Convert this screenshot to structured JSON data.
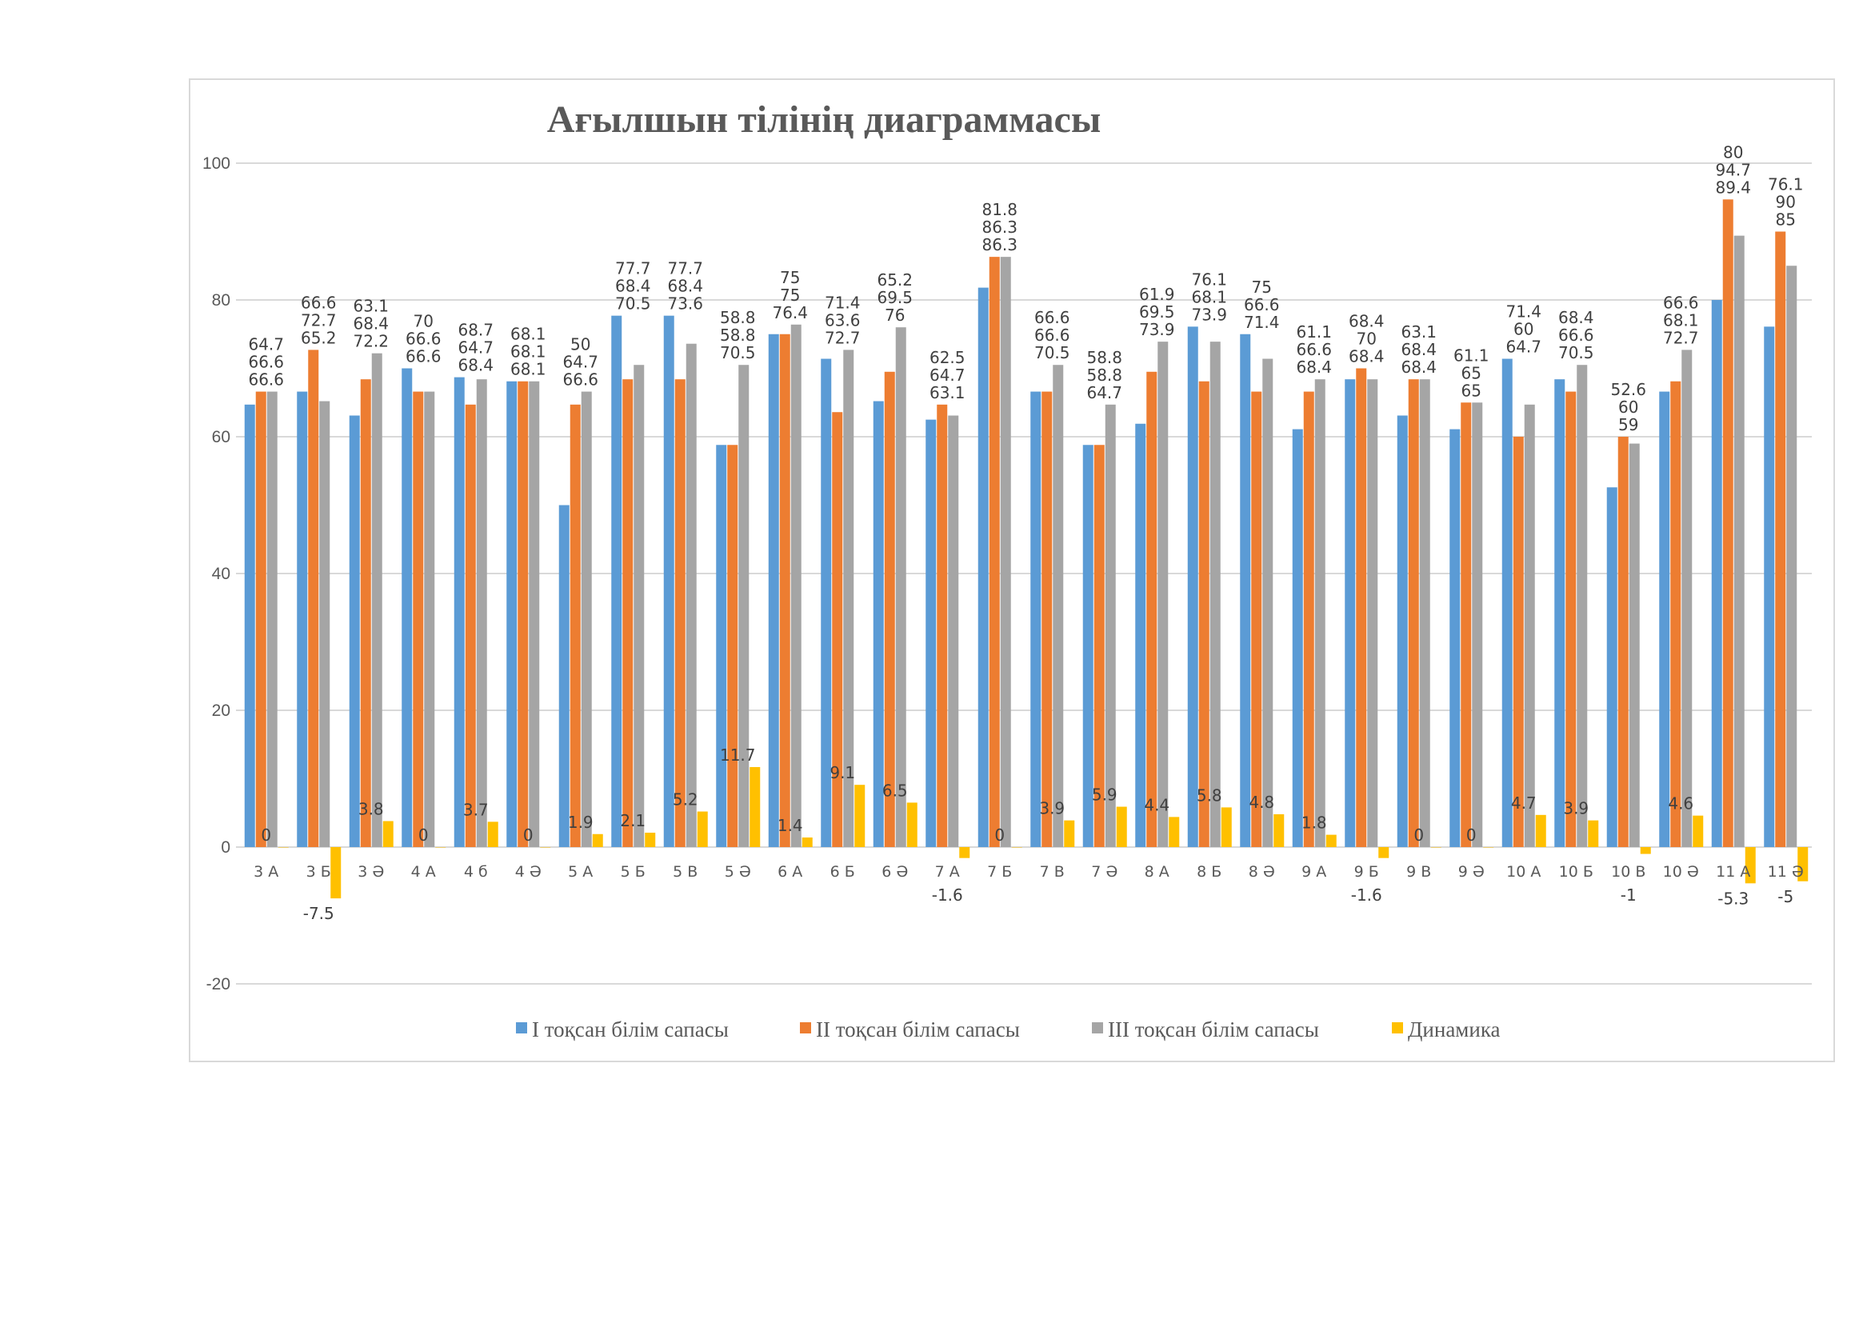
{
  "chart_data": {
    "type": "bar",
    "title": "Ағылшын тілінің диаграммасы",
    "xlabel": "",
    "ylabel": "",
    "ylim": [
      -20,
      100
    ],
    "yticks": [
      -20,
      0,
      20,
      40,
      60,
      80,
      100
    ],
    "grid": true,
    "legend_position": "bottom",
    "data_labels": true,
    "categories": [
      "3 А",
      "3 Б",
      "3 Ә",
      "4 А",
      "4 б",
      "4 Ә",
      "5 А",
      "5 Б",
      "5 В",
      "5 Ә",
      "6 А",
      "6 Б",
      "6 Ә",
      "7 А",
      "7 Б",
      "7 В",
      "7 Ә",
      "8 А",
      "8 Б",
      "8 Ә",
      "9 А",
      "9 Б",
      "9 В",
      "9 Ә",
      "10 А",
      "10 Б",
      "10 В",
      "10 Ә",
      "11 А",
      "11 Ә"
    ],
    "series": [
      {
        "name": "І тоқсан білім сапасы",
        "color": "#5B9BD5",
        "values": [
          64.7,
          66.6,
          63.1,
          70,
          68.7,
          68.1,
          50,
          77.7,
          77.7,
          58.8,
          75,
          71.4,
          65.2,
          62.5,
          81.8,
          66.6,
          58.8,
          61.9,
          76.1,
          75,
          61.1,
          68.4,
          63.1,
          61.1,
          71.4,
          68.4,
          52.6,
          66.6,
          80,
          76.1
        ]
      },
      {
        "name": "ІІ тоқсан білім сапасы",
        "color": "#ED7D31",
        "values": [
          66.6,
          72.7,
          68.4,
          66.6,
          64.7,
          68.1,
          64.7,
          68.4,
          68.4,
          58.8,
          75,
          63.6,
          69.5,
          64.7,
          86.3,
          66.6,
          58.8,
          69.5,
          68.1,
          66.6,
          66.6,
          70,
          68.4,
          65,
          60,
          66.6,
          60,
          68.1,
          94.7,
          90
        ]
      },
      {
        "name": "ІІІ тоқсан білім сапасы",
        "color": "#A5A5A5",
        "values": [
          66.6,
          65.2,
          72.2,
          66.6,
          68.4,
          68.1,
          66.6,
          70.5,
          73.6,
          70.5,
          76.4,
          72.7,
          76,
          63.1,
          86.3,
          70.5,
          64.7,
          73.9,
          73.9,
          71.4,
          68.4,
          68.4,
          68.4,
          65,
          64.7,
          70.5,
          59,
          72.7,
          89.4,
          85
        ]
      },
      {
        "name": "Динамика",
        "color": "#FFC000",
        "values": [
          0,
          -7.5,
          3.8,
          0,
          3.7,
          0,
          1.9,
          2.1,
          5.2,
          11.7,
          1.4,
          9.1,
          6.5,
          -1.6,
          0,
          3.9,
          5.9,
          4.4,
          5.8,
          4.8,
          1.8,
          -1.6,
          0,
          0,
          4.7,
          3.9,
          -1,
          4.6,
          -5.3,
          -5
        ]
      }
    ]
  }
}
